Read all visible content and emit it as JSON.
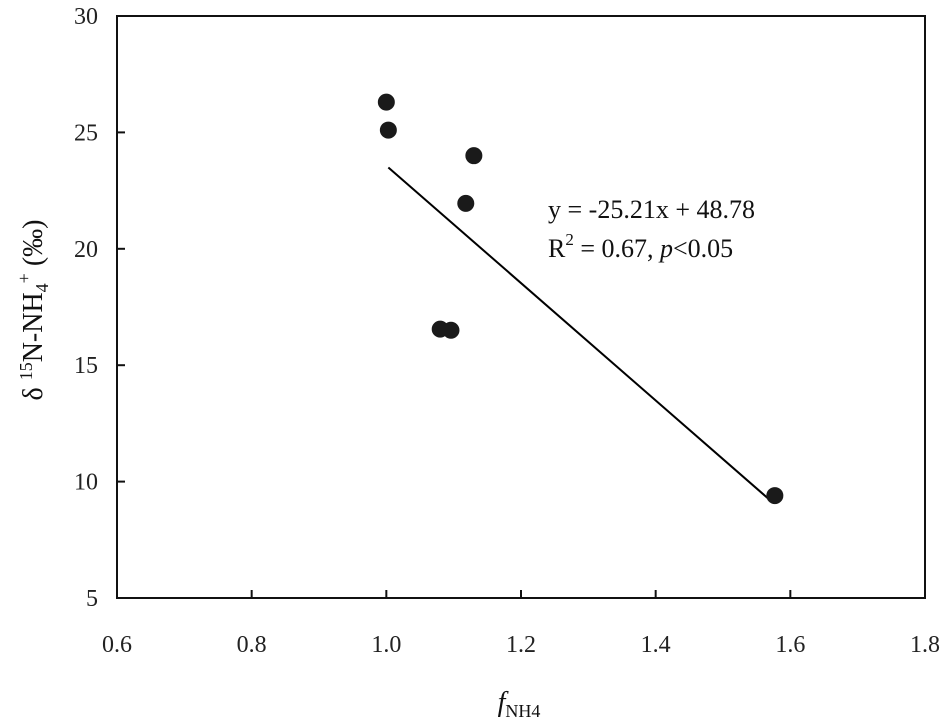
{
  "chart_data": {
    "type": "scatter",
    "xlim": [
      0.6,
      1.8
    ],
    "ylim": [
      5,
      30
    ],
    "x_ticks": [
      0.6,
      0.8,
      1.0,
      1.2,
      1.4,
      1.6,
      1.8
    ],
    "x_tick_labels": [
      "0.6",
      "0.8",
      "1.0",
      "1.2",
      "1.4",
      "1.6",
      "1.8"
    ],
    "y_ticks": [
      5,
      10,
      15,
      20,
      25,
      30
    ],
    "y_tick_labels": [
      "5",
      "10",
      "15",
      "20",
      "25",
      "30"
    ],
    "grid": false,
    "legend": "none",
    "xlabel": {
      "main": "f",
      "sub": "NH4"
    },
    "ylabel": {
      "prefix": "δ ",
      "sup1": "15",
      "mid": "N-NH",
      "sub": "4",
      "sup2": "+",
      "suffix": " (‰)"
    },
    "series": [
      {
        "points": [
          {
            "x": 1.0,
            "y": 26.3
          },
          {
            "x": 1.003,
            "y": 25.1
          },
          {
            "x": 1.13,
            "y": 24.0
          },
          {
            "x": 1.118,
            "y": 21.95
          },
          {
            "x": 1.08,
            "y": 16.55
          },
          {
            "x": 1.096,
            "y": 16.5
          },
          {
            "x": 1.577,
            "y": 9.4
          }
        ],
        "color": "#1a1a1a"
      }
    ],
    "trendline": {
      "slope": -25.21,
      "intercept": 48.78,
      "x_start": 1.003,
      "x_end": 1.573,
      "color": "#000000"
    },
    "annotations": [
      {
        "equation": "y = -25.21x + 48.78",
        "r_part": "R",
        "r_sup": "2",
        "r_value": " = 0.67, ",
        "p_symbol": "p",
        "p_value": "<0.05"
      }
    ]
  }
}
